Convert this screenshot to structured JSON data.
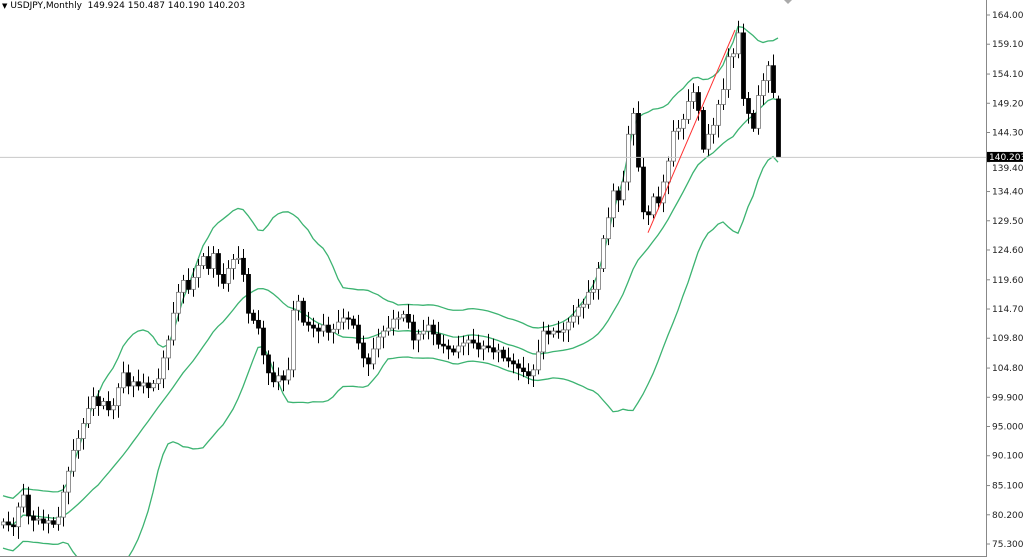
{
  "header": {
    "symbol_label": "USDJPY,Monthly",
    "ohlc_label": "149.924 150.487 140.190 140.203"
  },
  "chart_data": {
    "type": "candlestick",
    "symbol": "USDJPY",
    "timeframe": "Monthly",
    "last_bar": {
      "open": 149.924,
      "high": 150.487,
      "low": 140.19,
      "close": 140.203
    },
    "current_price": 140.203,
    "y_ticks": [
      "164.000",
      "159.100",
      "154.100",
      "149.200",
      "144.300",
      "139.400",
      "134.400",
      "129.500",
      "124.600",
      "119.600",
      "114.700",
      "109.800",
      "104.800",
      "99.900",
      "95.000",
      "90.100",
      "85.100",
      "80.200",
      "75.300"
    ],
    "ylim": [
      75.3,
      164.0
    ],
    "closes": [
      79.0,
      78.5,
      78.2,
      81.5,
      83.5,
      80.0,
      79.3,
      79.5,
      78.8,
      79.2,
      78.6,
      79.8,
      84.0,
      87.5,
      91.0,
      93.0,
      95.5,
      98.0,
      100.0,
      98.5,
      99.2,
      97.8,
      98.5,
      101.5,
      104.0,
      101.8,
      102.5,
      101.8,
      102.3,
      101.5,
      102.2,
      103.0,
      106.5,
      109.5,
      114.0,
      117.5,
      119.5,
      118.0,
      120.0,
      122.0,
      123.5,
      121.5,
      124.0,
      120.5,
      119.0,
      121.5,
      123.0,
      123.2,
      120.5,
      114.0,
      112.8,
      111.5,
      107.0,
      104.0,
      102.5,
      103.5,
      102.8,
      104.5,
      114.5,
      116.0,
      112.5,
      112.0,
      111.5,
      111.0,
      112.0,
      110.8,
      111.3,
      112.5,
      113.2,
      113.0,
      112.0,
      109.0,
      106.5,
      105.5,
      108.0,
      110.0,
      111.0,
      111.5,
      113.0,
      113.2,
      113.8,
      112.5,
      109.5,
      110.5,
      111.0,
      112.0,
      110.5,
      108.8,
      108.5,
      108.0,
      107.5,
      108.5,
      109.0,
      109.5,
      109.0,
      108.0,
      108.5,
      108.2,
      107.5,
      107.8,
      106.5,
      106.0,
      105.5,
      104.8,
      104.2,
      103.5,
      104.5,
      107.5,
      111.0,
      110.5,
      111.0,
      110.8,
      111.2,
      112.5,
      113.5,
      115.0,
      115.5,
      117.5,
      118.0,
      121.5,
      126.5,
      130.0,
      134.5,
      133.0,
      136.0,
      144.0,
      147.5,
      138.5,
      131.0,
      130.5,
      133.5,
      132.5,
      136.0,
      139.5,
      144.5,
      145.0,
      146.5,
      149.5,
      151.0,
      148.0,
      141.5,
      144.0,
      145.5,
      149.0,
      151.5,
      157.0,
      157.5,
      161.0,
      150.0,
      147.5,
      145.0,
      150.5,
      153.0,
      155.5,
      151.0,
      140.203
    ],
    "indicator": "Bollinger Bands",
    "trendline": {
      "from_price": 127.5,
      "to_price": 161.5
    },
    "colors": {
      "band": "#3cb371",
      "trendline": "#ff0000",
      "bull_body": "#ffffff",
      "bear_body": "#000000",
      "price_line": "#c0c0c0"
    }
  }
}
